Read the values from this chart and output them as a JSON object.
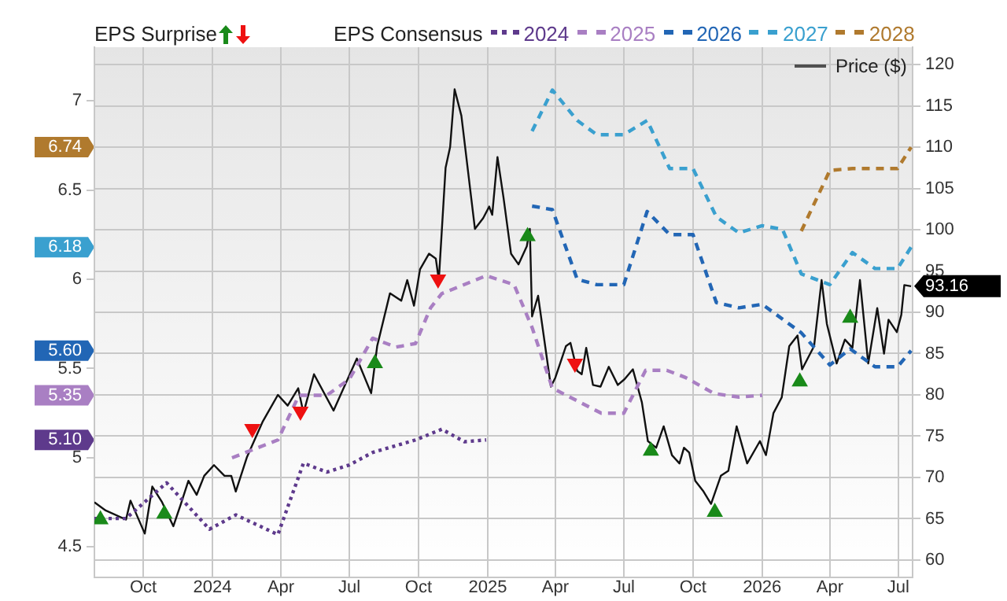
{
  "chart_data": {
    "type": "line",
    "annotations": [
      "EPS Surprise",
      "EPS Consensus"
    ],
    "legend": "top",
    "grid": true,
    "xlim": [
      "2023-07-28",
      "2026-07-20"
    ],
    "xticks": [
      {
        "value": "2023-10-01",
        "label": "Oct"
      },
      {
        "value": "2024-01-01",
        "label": "2024"
      },
      {
        "value": "2024-04-01",
        "label": "Apr"
      },
      {
        "value": "2024-07-01",
        "label": "Jul"
      },
      {
        "value": "2024-10-01",
        "label": "Oct"
      },
      {
        "value": "2025-01-01",
        "label": "2025"
      },
      {
        "value": "2025-04-01",
        "label": "Apr"
      },
      {
        "value": "2025-07-01",
        "label": "Jul"
      },
      {
        "value": "2025-10-01",
        "label": "Oct"
      },
      {
        "value": "2026-01-01",
        "label": "2026"
      },
      {
        "value": "2026-04-01",
        "label": "Apr"
      },
      {
        "value": "2026-07-01",
        "label": "Jul"
      }
    ],
    "ylim": [
      4.33,
      7.3
    ],
    "yticks": [
      4.5,
      5,
      5.5,
      6,
      6.5,
      7,
      {
        "value": 5.1,
        "label": "5.10"
      },
      {
        "value": 5.35,
        "label": "5.35"
      },
      {
        "value": 5.6,
        "label": "5.60"
      },
      {
        "value": 6.18,
        "label": "6.18"
      },
      {
        "value": 6.74,
        "label": "6.74"
      }
    ],
    "y2lim": [
      57.9,
      122.1
    ],
    "y2ticks": [
      60,
      65,
      70,
      75,
      80,
      85,
      90,
      95,
      100,
      105,
      110,
      115,
      120,
      {
        "value": 93.16,
        "label": "93.16"
      }
    ],
    "series": [
      {
        "type": "scatter",
        "color": "#1a8a1a",
        "marker": "triangle",
        "axis": "y2",
        "x": [
          "2023-08-05",
          "2023-10-29",
          "2024-08-04",
          "2025-02-23",
          "2025-08-06",
          "2025-10-30",
          "2026-02-20",
          "2026-04-28"
        ],
        "values": [
          64.9,
          65.6,
          83.8,
          99.2,
          73.2,
          65.8,
          81.6,
          89.3
        ]
      },
      {
        "type": "scatter",
        "color": "#ee1111",
        "marker": "triangle",
        "axis": "y2",
        "x": [
          "2024-02-23",
          "2024-04-27",
          "2024-10-27",
          "2025-04-27"
        ],
        "values": [
          75.9,
          78.0,
          94.0,
          83.8
        ]
      },
      {
        "name": "2024",
        "color": "#5e3a8c",
        "line_style": "dotted",
        "marker": "none",
        "x": [
          "2023-07-28",
          "2023-09-08",
          "2023-11-01",
          "2023-12-28",
          "2024-02-01",
          "2024-03-28",
          "2024-05-01",
          "2024-06-01",
          "2024-07-01",
          "2024-08-01",
          "2024-09-27",
          "2024-11-01",
          "2024-12-01",
          "2024-12-30"
        ],
        "values": [
          4.66,
          4.66,
          4.86,
          4.6,
          4.68,
          4.57,
          4.97,
          4.92,
          4.96,
          5.03,
          5.1,
          5.16,
          5.09,
          5.1
        ]
      },
      {
        "name": "2025",
        "color": "#a97fc3",
        "line_style": "dashed",
        "marker": "none",
        "x": [
          "2024-01-27",
          "2024-03-28",
          "2024-04-25",
          "2024-06-01",
          "2024-07-01",
          "2024-08-01",
          "2024-09-01",
          "2024-09-27",
          "2024-10-17",
          "2024-11-01",
          "2024-12-30",
          "2025-02-05",
          "2025-03-01",
          "2025-03-28",
          "2025-06-01",
          "2025-07-01",
          "2025-07-30",
          "2025-08-27",
          "2025-09-21",
          "2025-10-29",
          "2025-12-01",
          "2026-01-01"
        ],
        "values": [
          5.0,
          5.1,
          5.35,
          5.35,
          5.44,
          5.67,
          5.62,
          5.64,
          5.84,
          5.92,
          6.02,
          5.97,
          5.73,
          5.39,
          5.25,
          5.25,
          5.49,
          5.49,
          5.45,
          5.36,
          5.34,
          5.35
        ]
      },
      {
        "name": "2026",
        "color": "#2266b5",
        "line_style": "dashed",
        "marker": "none",
        "x": [
          "2025-03-01",
          "2025-03-28",
          "2025-04-30",
          "2025-05-26",
          "2025-07-01",
          "2025-08-01",
          "2025-08-31",
          "2025-10-01",
          "2025-11-01",
          "2025-12-01",
          "2026-01-01",
          "2026-02-22",
          "2026-04-01",
          "2026-04-28",
          "2026-05-31",
          "2026-06-30",
          "2026-07-18"
        ],
        "values": [
          6.41,
          6.39,
          6.0,
          5.97,
          5.97,
          6.38,
          6.25,
          6.25,
          5.87,
          5.84,
          5.86,
          5.7,
          5.52,
          5.61,
          5.51,
          5.51,
          5.6
        ]
      },
      {
        "name": "2027",
        "color": "#3aa0cf",
        "line_style": "dashed",
        "marker": "none",
        "x": [
          "2025-03-01",
          "2025-03-28",
          "2025-04-30",
          "2025-05-26",
          "2025-07-01",
          "2025-08-01",
          "2025-08-31",
          "2025-10-01",
          "2025-11-01",
          "2025-12-01",
          "2026-01-01",
          "2026-01-28",
          "2026-02-22",
          "2026-04-01",
          "2026-05-01",
          "2026-05-31",
          "2026-06-30",
          "2026-07-18"
        ],
        "values": [
          6.83,
          7.06,
          6.89,
          6.81,
          6.81,
          6.89,
          6.62,
          6.62,
          6.35,
          6.26,
          6.3,
          6.28,
          6.03,
          5.97,
          6.15,
          6.06,
          6.06,
          6.18
        ]
      },
      {
        "name": "2028",
        "color": "#b07a2e",
        "line_style": "dashed",
        "marker": "none",
        "x": [
          "2026-02-22",
          "2026-04-01",
          "2026-05-01",
          "2026-06-30",
          "2026-07-18"
        ],
        "values": [
          6.27,
          6.61,
          6.62,
          6.62,
          6.74
        ]
      },
      {
        "name": "Price ($)",
        "color": "#111111",
        "axis": "y2",
        "line_style": "solid",
        "marker": "none",
        "x": [
          "2023-07-28",
          "2023-08-12",
          "2023-09-08",
          "2023-09-14",
          "2023-10-03",
          "2023-10-13",
          "2023-10-26",
          "2023-11-10",
          "2023-11-20",
          "2023-11-30",
          "2023-12-11",
          "2023-12-21",
          "2024-01-03",
          "2024-01-17",
          "2024-01-26",
          "2024-02-01",
          "2024-02-16",
          "2024-03-08",
          "2024-03-28",
          "2024-04-10",
          "2024-04-24",
          "2024-05-01",
          "2024-05-15",
          "2024-06-10",
          "2024-07-11",
          "2024-07-30",
          "2024-08-07",
          "2024-08-24",
          "2024-09-08",
          "2024-09-16",
          "2024-09-25",
          "2024-10-03",
          "2024-10-15",
          "2024-10-24",
          "2024-10-28",
          "2024-11-06",
          "2024-11-12",
          "2024-11-18",
          "2024-11-27",
          "2024-12-15",
          "2024-12-26",
          "2025-01-03",
          "2025-01-07",
          "2025-01-14",
          "2025-01-22",
          "2025-02-01",
          "2025-02-11",
          "2025-02-22",
          "2025-02-26",
          "2025-03-01",
          "2025-03-09",
          "2025-03-26",
          "2025-04-01",
          "2025-04-15",
          "2025-04-21",
          "2025-04-30",
          "2025-05-06",
          "2025-05-12",
          "2025-05-21",
          "2025-05-31",
          "2025-06-11",
          "2025-06-23",
          "2025-07-02",
          "2025-07-13",
          "2025-07-25",
          "2025-08-02",
          "2025-08-13",
          "2025-08-23",
          "2025-09-03",
          "2025-09-13",
          "2025-09-19",
          "2025-09-26",
          "2025-10-04",
          "2025-10-15",
          "2025-10-25",
          "2025-11-07",
          "2025-11-17",
          "2025-11-28",
          "2025-12-12",
          "2025-12-29",
          "2026-01-06",
          "2026-01-16",
          "2026-01-27",
          "2026-02-06",
          "2026-02-17",
          "2026-02-23",
          "2026-03-11",
          "2026-03-21",
          "2026-03-28",
          "2026-04-10",
          "2026-04-21",
          "2026-05-01",
          "2026-05-11",
          "2026-05-22",
          "2026-06-03",
          "2026-06-12",
          "2026-06-18",
          "2026-06-29",
          "2026-07-05",
          "2026-07-09",
          "2026-07-18"
        ],
        "values": [
          67.0,
          66.0,
          64.9,
          67.2,
          63.2,
          68.9,
          67.0,
          64.1,
          66.8,
          69.6,
          67.9,
          70.2,
          71.5,
          70.2,
          70.2,
          68.3,
          72.5,
          76.8,
          80.0,
          78.7,
          80.8,
          77.8,
          82.5,
          78.1,
          84.4,
          80.2,
          85.9,
          92.3,
          91.4,
          93.9,
          90.8,
          95.2,
          97.1,
          96.5,
          93.9,
          107.5,
          110.0,
          117.0,
          113.8,
          100.1,
          101.4,
          102.8,
          101.8,
          108.8,
          103.9,
          97.1,
          95.8,
          98.0,
          100.1,
          89.5,
          92.0,
          81.0,
          82.1,
          85.9,
          86.3,
          82.9,
          82.5,
          85.7,
          81.2,
          81.0,
          83.4,
          81.2,
          81.9,
          83.1,
          79.1,
          74.4,
          73.6,
          76.2,
          72.7,
          71.7,
          73.6,
          73.0,
          69.6,
          68.3,
          66.8,
          70.2,
          70.8,
          76.2,
          71.7,
          74.4,
          72.7,
          77.8,
          79.7,
          85.9,
          87.2,
          83.1,
          85.9,
          93.9,
          88.6,
          83.8,
          86.7,
          85.7,
          93.9,
          83.8,
          90.5,
          85.0,
          89.1,
          87.6,
          89.7,
          93.3,
          93.16
        ]
      }
    ]
  }
}
